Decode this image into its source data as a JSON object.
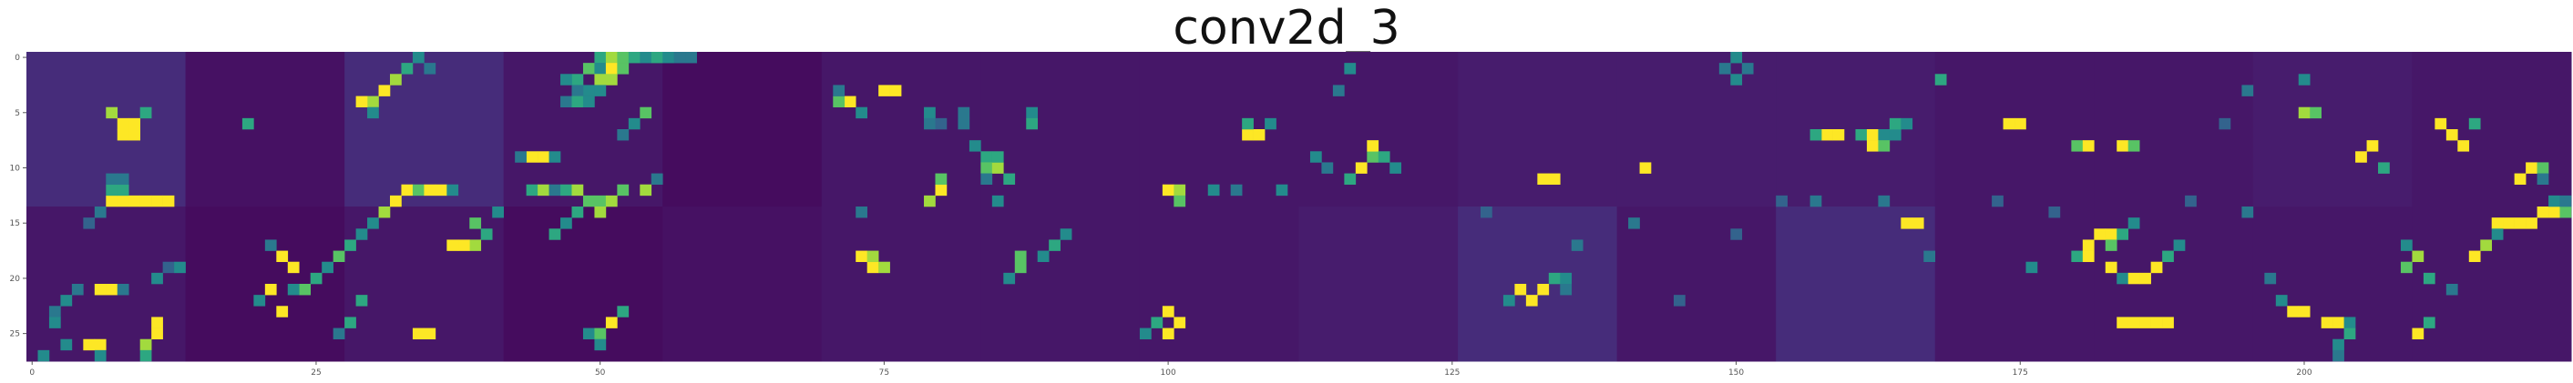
{
  "chart_data": {
    "type": "heatmap",
    "title": "conv2d_3",
    "colormap": "viridis",
    "grid": false,
    "x_ticks": [
      "0",
      "25",
      "50",
      "75",
      "100",
      "125",
      "150",
      "175",
      "200"
    ],
    "y_ticks": [
      "0",
      "5",
      "10",
      "15",
      "20",
      "25"
    ],
    "x_range": [
      0,
      224
    ],
    "y_range": [
      0,
      28
    ],
    "tile_grid": {
      "columns": 16,
      "rows": 2,
      "tile_size": 14
    },
    "tile_background_levels": [
      [
        0.16,
        0.06,
        0.16,
        0.08,
        0.04,
        0.08,
        0.08,
        0.08,
        0.08,
        0.1,
        0.1,
        0.1,
        0.08,
        0.08,
        0.1,
        0.08
      ],
      [
        0.08,
        0.04,
        0.08,
        0.04,
        0.06,
        0.08,
        0.08,
        0.08,
        0.1,
        0.16,
        0.08,
        0.16,
        0.08,
        0.08,
        0.08,
        0.08
      ]
    ],
    "hot_spots": [
      [
        7,
        5,
        0.9
      ],
      [
        8,
        6,
        1
      ],
      [
        8,
        7,
        1
      ],
      [
        9,
        6,
        1
      ],
      [
        9,
        7,
        1
      ],
      [
        10,
        5,
        0.7
      ],
      [
        7,
        13,
        1
      ],
      [
        8,
        13,
        1
      ],
      [
        9,
        13,
        1
      ],
      [
        10,
        13,
        1
      ],
      [
        11,
        13,
        1
      ],
      [
        12,
        13,
        1
      ],
      [
        7,
        12,
        0.7
      ],
      [
        8,
        12,
        0.7
      ],
      [
        7,
        11,
        0.5
      ],
      [
        8,
        11,
        0.5
      ],
      [
        6,
        14,
        0.5
      ],
      [
        5,
        15,
        0.4
      ],
      [
        4,
        21,
        0.5
      ],
      [
        3,
        22,
        0.6
      ],
      [
        2,
        23,
        0.5
      ],
      [
        2,
        24,
        0.6
      ],
      [
        6,
        21,
        1
      ],
      [
        7,
        21,
        1
      ],
      [
        8,
        21,
        0.5
      ],
      [
        11,
        25,
        1
      ],
      [
        11,
        24,
        1
      ],
      [
        10,
        26,
        0.9
      ],
      [
        10,
        27,
        0.7
      ],
      [
        1,
        27,
        0.6
      ],
      [
        3,
        26,
        0.6
      ],
      [
        5,
        26,
        1
      ],
      [
        6,
        26,
        1
      ],
      [
        6,
        27,
        0.6
      ],
      [
        11,
        20,
        0.6
      ],
      [
        12,
        19,
        0.4
      ],
      [
        13,
        19,
        0.6
      ],
      [
        22,
        18,
        1
      ],
      [
        23,
        19,
        1
      ],
      [
        21,
        17,
        0.5
      ],
      [
        21,
        21,
        1
      ],
      [
        20,
        22,
        0.6
      ],
      [
        19,
        6,
        0.7
      ],
      [
        34,
        0,
        0.6
      ],
      [
        33,
        1,
        0.7
      ],
      [
        32,
        2,
        0.9
      ],
      [
        31,
        3,
        1
      ],
      [
        30,
        4,
        0.9
      ],
      [
        30,
        5,
        0.6
      ],
      [
        29,
        4,
        1
      ],
      [
        35,
        1,
        0.5
      ],
      [
        30,
        15,
        0.6
      ],
      [
        31,
        14,
        0.9
      ],
      [
        32,
        13,
        1
      ],
      [
        33,
        12,
        1
      ],
      [
        34,
        12,
        0.8
      ],
      [
        35,
        12,
        1
      ],
      [
        36,
        12,
        1
      ],
      [
        37,
        12,
        0.6
      ],
      [
        29,
        16,
        0.6
      ],
      [
        28,
        17,
        0.7
      ],
      [
        27,
        18,
        0.8
      ],
      [
        26,
        19,
        0.6
      ],
      [
        25,
        20,
        0.7
      ],
      [
        24,
        21,
        0.8
      ],
      [
        23,
        21,
        0.6
      ],
      [
        22,
        23,
        1
      ],
      [
        34,
        25,
        1
      ],
      [
        35,
        25,
        1
      ],
      [
        27,
        25,
        0.5
      ],
      [
        28,
        24,
        0.7
      ],
      [
        29,
        22,
        0.7
      ],
      [
        39,
        15,
        0.8
      ],
      [
        40,
        16,
        0.7
      ],
      [
        39,
        17,
        0.9
      ],
      [
        38,
        17,
        1
      ],
      [
        37,
        17,
        1
      ],
      [
        41,
        14,
        0.6
      ],
      [
        44,
        9,
        1
      ],
      [
        45,
        9,
        1
      ],
      [
        46,
        9,
        0.6
      ],
      [
        43,
        9,
        0.5
      ],
      [
        44,
        12,
        0.7
      ],
      [
        45,
        12,
        0.9
      ],
      [
        46,
        12,
        0.5
      ],
      [
        47,
        12,
        0.7
      ],
      [
        48,
        12,
        0.9
      ],
      [
        48,
        14,
        0.7
      ],
      [
        49,
        13,
        0.8
      ],
      [
        50,
        13,
        0.8
      ],
      [
        47,
        15,
        0.6
      ],
      [
        46,
        16,
        0.7
      ],
      [
        50,
        0,
        0.7
      ],
      [
        51,
        0,
        0.9
      ],
      [
        52,
        0,
        0.8
      ],
      [
        53,
        0,
        0.7
      ],
      [
        54,
        0,
        0.6
      ],
      [
        55,
        0,
        0.7
      ],
      [
        56,
        0,
        0.6
      ],
      [
        57,
        0,
        0.5
      ],
      [
        58,
        0,
        0.5
      ],
      [
        49,
        1,
        0.8
      ],
      [
        48,
        2,
        0.7
      ],
      [
        47,
        2,
        0.6
      ],
      [
        50,
        1,
        0.6
      ],
      [
        51,
        1,
        1
      ],
      [
        52,
        1,
        0.8
      ],
      [
        50,
        2,
        0.9
      ],
      [
        51,
        2,
        0.9
      ],
      [
        49,
        3,
        0.6
      ],
      [
        50,
        3,
        0.6
      ],
      [
        48,
        3,
        0.5
      ],
      [
        47,
        4,
        0.5
      ],
      [
        48,
        4,
        0.7
      ],
      [
        49,
        4,
        0.6
      ],
      [
        54,
        5,
        0.8
      ],
      [
        53,
        6,
        0.6
      ],
      [
        52,
        7,
        0.5
      ],
      [
        52,
        12,
        0.8
      ],
      [
        51,
        13,
        0.9
      ],
      [
        50,
        14,
        0.9
      ],
      [
        54,
        12,
        0.9
      ],
      [
        55,
        11,
        0.5
      ],
      [
        49,
        25,
        0.6
      ],
      [
        50,
        25,
        0.8
      ],
      [
        51,
        24,
        1
      ],
      [
        52,
        23,
        0.7
      ],
      [
        50,
        26,
        0.6
      ],
      [
        75,
        3,
        1
      ],
      [
        76,
        3,
        1
      ],
      [
        72,
        4,
        1
      ],
      [
        71,
        4,
        0.8
      ],
      [
        73,
        5,
        0.6
      ],
      [
        71,
        3,
        0.5
      ],
      [
        79,
        5,
        0.6
      ],
      [
        79,
        6,
        0.5
      ],
      [
        80,
        6,
        0.4
      ],
      [
        82,
        6,
        0.5
      ],
      [
        82,
        5,
        0.5
      ],
      [
        88,
        5,
        0.6
      ],
      [
        88,
        6,
        0.7
      ],
      [
        83,
        8,
        0.6
      ],
      [
        84,
        9,
        0.7
      ],
      [
        84,
        10,
        0.8
      ],
      [
        85,
        10,
        0.9
      ],
      [
        85,
        9,
        0.7
      ],
      [
        84,
        11,
        0.5
      ],
      [
        80,
        12,
        1
      ],
      [
        79,
        13,
        0.9
      ],
      [
        80,
        11,
        0.8
      ],
      [
        73,
        14,
        0.5
      ],
      [
        85,
        13,
        0.6
      ],
      [
        86,
        11,
        0.7
      ],
      [
        100,
        12,
        1
      ],
      [
        101,
        12,
        0.9
      ],
      [
        101,
        13,
        0.8
      ],
      [
        104,
        12,
        0.6
      ],
      [
        106,
        12,
        0.5
      ],
      [
        107,
        7,
        1
      ],
      [
        108,
        7,
        1
      ],
      [
        109,
        6,
        0.6
      ],
      [
        107,
        6,
        0.7
      ],
      [
        113,
        9,
        0.6
      ],
      [
        114,
        10,
        0.5
      ],
      [
        116,
        11,
        0.7
      ],
      [
        117,
        10,
        1
      ],
      [
        118,
        9,
        0.8
      ],
      [
        118,
        8,
        1
      ],
      [
        119,
        9,
        0.7
      ],
      [
        120,
        10,
        0.6
      ],
      [
        110,
        12,
        0.6
      ],
      [
        73,
        18,
        1
      ],
      [
        74,
        19,
        1
      ],
      [
        74,
        18,
        0.9
      ],
      [
        75,
        19,
        0.9
      ],
      [
        86,
        20,
        0.6
      ],
      [
        87,
        19,
        0.8
      ],
      [
        87,
        18,
        0.8
      ],
      [
        89,
        18,
        0.6
      ],
      [
        90,
        17,
        0.7
      ],
      [
        91,
        16,
        0.6
      ],
      [
        100,
        25,
        1
      ],
      [
        101,
        24,
        1
      ],
      [
        100,
        23,
        1
      ],
      [
        99,
        24,
        0.7
      ],
      [
        98,
        25,
        0.6
      ],
      [
        115,
        3,
        0.5
      ],
      [
        116,
        1,
        0.6
      ],
      [
        133,
        11,
        1
      ],
      [
        134,
        11,
        1
      ],
      [
        131,
        21,
        1
      ],
      [
        132,
        22,
        1
      ],
      [
        133,
        21,
        1
      ],
      [
        134,
        20,
        0.7
      ],
      [
        135,
        20,
        0.6
      ],
      [
        135,
        21,
        0.5
      ],
      [
        130,
        22,
        0.6
      ],
      [
        136,
        17,
        0.5
      ],
      [
        141,
        15,
        0.5
      ],
      [
        128,
        14,
        0.4
      ],
      [
        142,
        10,
        1
      ],
      [
        149,
        1,
        0.5
      ],
      [
        150,
        0,
        0.6
      ],
      [
        151,
        1,
        0.5
      ],
      [
        150,
        2,
        0.6
      ],
      [
        158,
        7,
        1
      ],
      [
        159,
        7,
        1
      ],
      [
        157,
        7,
        0.7
      ],
      [
        161,
        7,
        0.7
      ],
      [
        162,
        7,
        1
      ],
      [
        163,
        7,
        0.6
      ],
      [
        162,
        8,
        1
      ],
      [
        163,
        8,
        0.8
      ],
      [
        164,
        7,
        0.6
      ],
      [
        164,
        6,
        0.7
      ],
      [
        165,
        6,
        0.6
      ],
      [
        165,
        15,
        1
      ],
      [
        166,
        15,
        1
      ],
      [
        163,
        13,
        0.5
      ],
      [
        168,
        2,
        0.7
      ],
      [
        174,
        6,
        1
      ],
      [
        175,
        6,
        1
      ],
      [
        180,
        8,
        0.8
      ],
      [
        181,
        8,
        1
      ],
      [
        184,
        8,
        1
      ],
      [
        185,
        8,
        0.8
      ],
      [
        180,
        18,
        0.7
      ],
      [
        181,
        17,
        1
      ],
      [
        181,
        18,
        1
      ],
      [
        182,
        16,
        1
      ],
      [
        183,
        16,
        1
      ],
      [
        183,
        17,
        0.8
      ],
      [
        184,
        16,
        0.7
      ],
      [
        185,
        15,
        0.6
      ],
      [
        183,
        19,
        1
      ],
      [
        184,
        20,
        0.6
      ],
      [
        185,
        20,
        1
      ],
      [
        186,
        20,
        1
      ],
      [
        187,
        19,
        1
      ],
      [
        184,
        24,
        1
      ],
      [
        185,
        24,
        1
      ],
      [
        186,
        24,
        1
      ],
      [
        187,
        24,
        1
      ],
      [
        188,
        24,
        1
      ],
      [
        200,
        5,
        0.9
      ],
      [
        201,
        5,
        0.8
      ],
      [
        200,
        2,
        0.6
      ],
      [
        205,
        9,
        1
      ],
      [
        206,
        8,
        1
      ],
      [
        207,
        10,
        0.7
      ],
      [
        212,
        6,
        1
      ],
      [
        213,
        7,
        1
      ],
      [
        214,
        8,
        1
      ],
      [
        215,
        6,
        0.7
      ],
      [
        209,
        17,
        0.6
      ],
      [
        209,
        19,
        0.8
      ],
      [
        210,
        18,
        0.9
      ],
      [
        211,
        20,
        0.7
      ],
      [
        202,
        24,
        1
      ],
      [
        203,
        24,
        1
      ],
      [
        204,
        24,
        0.6
      ],
      [
        204,
        25,
        0.7
      ],
      [
        203,
        26,
        0.6
      ],
      [
        203,
        27,
        0.5
      ],
      [
        198,
        22,
        0.6
      ],
      [
        199,
        23,
        1
      ],
      [
        200,
        23,
        1
      ],
      [
        219,
        11,
        1
      ],
      [
        220,
        10,
        1
      ],
      [
        221,
        10,
        0.8
      ],
      [
        221,
        11,
        0.5
      ],
      [
        217,
        15,
        1
      ],
      [
        218,
        15,
        1
      ],
      [
        219,
        15,
        1
      ],
      [
        220,
        15,
        1
      ],
      [
        221,
        14,
        1
      ],
      [
        222,
        14,
        1
      ],
      [
        223,
        14,
        0.8
      ],
      [
        222,
        13,
        0.6
      ],
      [
        223,
        13,
        0.5
      ],
      [
        210,
        25,
        1
      ],
      [
        211,
        24,
        0.7
      ],
      [
        213,
        21,
        0.5
      ],
      [
        215,
        18,
        1
      ],
      [
        216,
        17,
        0.9
      ],
      [
        217,
        16,
        0.6
      ],
      [
        173,
        13,
        0.4
      ],
      [
        167,
        18,
        0.5
      ],
      [
        178,
        14,
        0.4
      ],
      [
        190,
        13,
        0.4
      ],
      [
        195,
        14,
        0.5
      ],
      [
        157,
        13,
        0.5
      ],
      [
        154,
        13,
        0.4
      ],
      [
        176,
        19,
        0.6
      ],
      [
        188,
        18,
        0.7
      ],
      [
        189,
        17,
        0.6
      ],
      [
        193,
        6,
        0.4
      ],
      [
        195,
        3,
        0.5
      ],
      [
        197,
        20,
        0.5
      ],
      [
        150,
        16,
        0.4
      ],
      [
        145,
        22,
        0.4
      ]
    ]
  }
}
